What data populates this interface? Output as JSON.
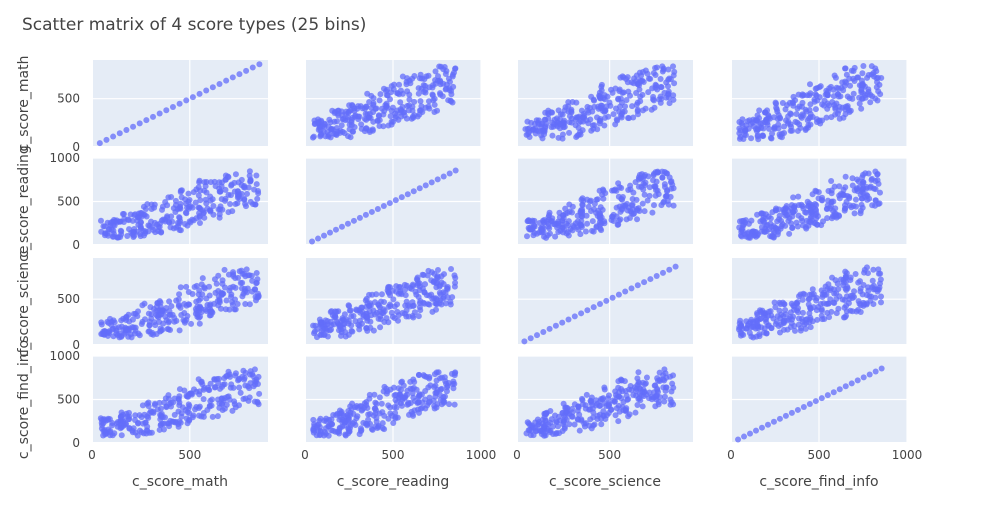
{
  "chart_data": {
    "type": "scatter",
    "title": "Scatter matrix of 4 score types (25 bins)",
    "dimensions": [
      "c_score_math",
      "c_score_reading",
      "c_score_science",
      "c_score_find_info"
    ],
    "ranges": {
      "c_score_math": [
        0,
        900
      ],
      "c_score_reading": [
        0,
        1000
      ],
      "c_score_science": [
        0,
        950
      ],
      "c_score_find_info": [
        0,
        1000
      ]
    },
    "x_ticks": {
      "c_score_math": [
        "0",
        "500"
      ],
      "c_score_reading": [
        "0",
        "500",
        "1000"
      ],
      "c_score_science": [
        "0",
        "500"
      ],
      "c_score_find_info": [
        "0",
        "500",
        "1000"
      ]
    },
    "y_ticks": {
      "c_score_math": [
        "0",
        "500"
      ],
      "c_score_reading": [
        "0",
        "500",
        "1000"
      ],
      "c_score_science": [
        "0",
        "500"
      ],
      "c_score_find_info": [
        "0",
        "500",
        "1000"
      ]
    },
    "diagonal_values": [
      40,
      74,
      108,
      142,
      176,
      210,
      244,
      278,
      312,
      346,
      380,
      414,
      448,
      482,
      516,
      550,
      584,
      618,
      652,
      686,
      720,
      754,
      788,
      822,
      856
    ],
    "point_clusters": [
      {
        "x": 100,
        "y_low": 80,
        "y_high": 290
      },
      {
        "x": 200,
        "y_low": 80,
        "y_high": 380
      },
      {
        "x": 300,
        "y_low": 100,
        "y_high": 470
      },
      {
        "x": 400,
        "y_low": 150,
        "y_high": 560
      },
      {
        "x": 500,
        "y_low": 220,
        "y_high": 650
      },
      {
        "x": 600,
        "y_low": 290,
        "y_high": 740
      },
      {
        "x": 700,
        "y_low": 360,
        "y_high": 820
      },
      {
        "x": 800,
        "y_low": 440,
        "y_high": 850
      }
    ],
    "marker_color": "#636efa",
    "plot_background": "#e5ecf6",
    "grid": true,
    "legend": "none"
  }
}
